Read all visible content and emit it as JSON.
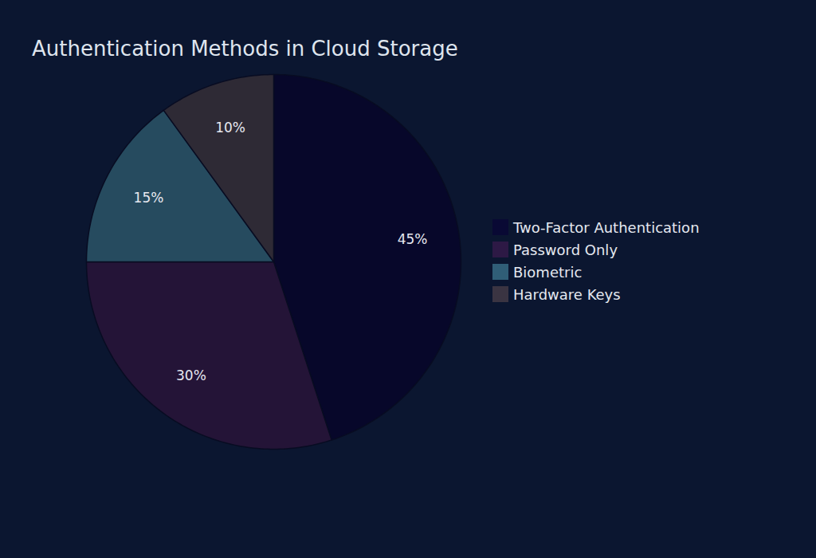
{
  "chart_data": {
    "type": "pie",
    "title": "Authentication Methods in Cloud Storage",
    "categories": [
      "Two-Factor Authentication",
      "Password Only",
      "Biometric",
      "Hardware Keys"
    ],
    "values": [
      45,
      30,
      15,
      10
    ],
    "value_labels": [
      "45%",
      "30%",
      "15%",
      "10%"
    ],
    "colors": [
      "#07072a",
      "#241437",
      "#264b5f",
      "#2e2a35"
    ],
    "data_labels": true,
    "legend": "right"
  }
}
